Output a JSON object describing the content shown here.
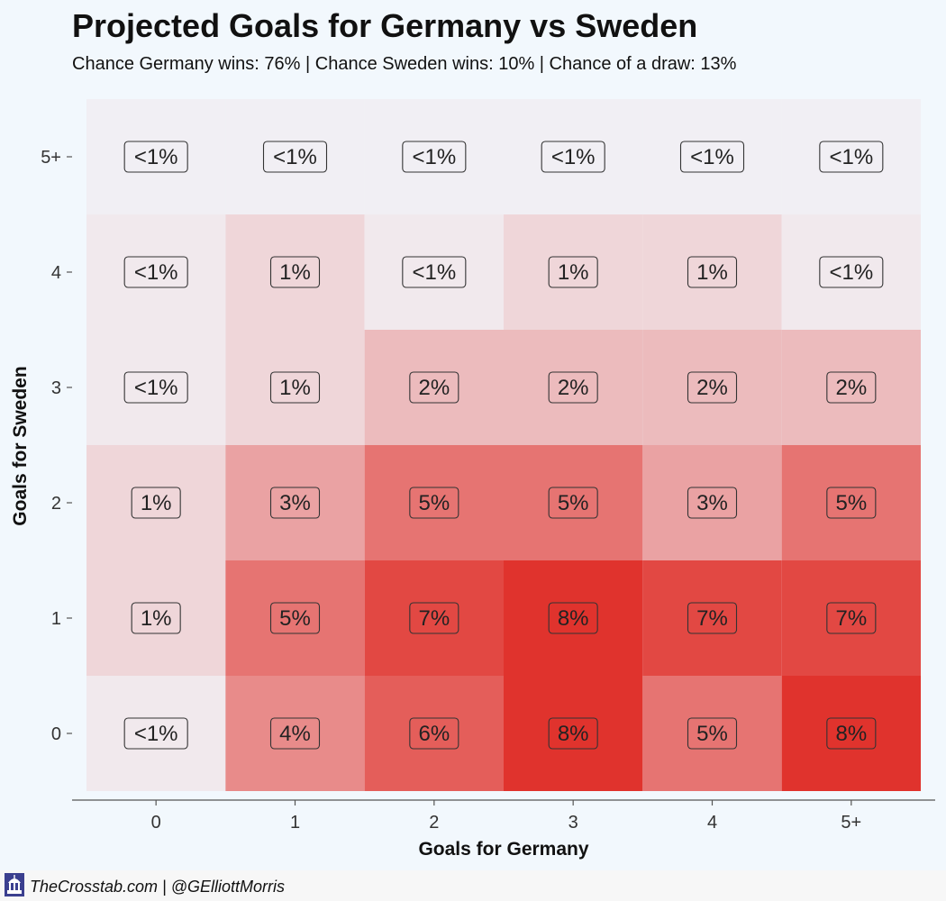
{
  "title": "Projected Goals for Germany vs Sweden",
  "subtitle": "Chance Germany wins: 76% | Chance Sweden wins: 10% | Chance of a draw: 13%",
  "footer": {
    "credit": "TheCrosstab.com | @GElliottMorris",
    "logo_icon": "capitol-building-icon"
  },
  "chart_data": {
    "type": "heatmap",
    "title": "Projected Goals for Germany vs Sweden",
    "subtitle": "Chance Germany wins: 76% | Chance Sweden wins: 10% | Chance of a draw: 13%",
    "xlabel": "Goals for Germany",
    "ylabel": "Goals for Sweden",
    "x_categories": [
      "0",
      "1",
      "2",
      "3",
      "4",
      "5+"
    ],
    "y_categories": [
      "0",
      "1",
      "2",
      "3",
      "4",
      "5+"
    ],
    "color_low": "#f2f8fd",
    "color_high": "#e0332d",
    "cells": [
      {
        "x": "0",
        "y": "0",
        "value": 0.4,
        "label": "<1%"
      },
      {
        "x": "1",
        "y": "0",
        "value": 4,
        "label": "4%"
      },
      {
        "x": "2",
        "y": "0",
        "value": 6,
        "label": "6%"
      },
      {
        "x": "3",
        "y": "0",
        "value": 8,
        "label": "8%"
      },
      {
        "x": "4",
        "y": "0",
        "value": 5,
        "label": "5%"
      },
      {
        "x": "5+",
        "y": "0",
        "value": 8,
        "label": "8%"
      },
      {
        "x": "0",
        "y": "1",
        "value": 1,
        "label": "1%"
      },
      {
        "x": "1",
        "y": "1",
        "value": 5,
        "label": "5%"
      },
      {
        "x": "2",
        "y": "1",
        "value": 7,
        "label": "7%"
      },
      {
        "x": "3",
        "y": "1",
        "value": 8,
        "label": "8%"
      },
      {
        "x": "4",
        "y": "1",
        "value": 7,
        "label": "7%"
      },
      {
        "x": "5+",
        "y": "1",
        "value": 7,
        "label": "7%"
      },
      {
        "x": "0",
        "y": "2",
        "value": 1,
        "label": "1%"
      },
      {
        "x": "1",
        "y": "2",
        "value": 3,
        "label": "3%"
      },
      {
        "x": "2",
        "y": "2",
        "value": 5,
        "label": "5%"
      },
      {
        "x": "3",
        "y": "2",
        "value": 5,
        "label": "5%"
      },
      {
        "x": "4",
        "y": "2",
        "value": 3,
        "label": "3%"
      },
      {
        "x": "5+",
        "y": "2",
        "value": 5,
        "label": "5%"
      },
      {
        "x": "0",
        "y": "3",
        "value": 0.4,
        "label": "<1%"
      },
      {
        "x": "1",
        "y": "3",
        "value": 1,
        "label": "1%"
      },
      {
        "x": "2",
        "y": "3",
        "value": 2,
        "label": "2%"
      },
      {
        "x": "3",
        "y": "3",
        "value": 2,
        "label": "2%"
      },
      {
        "x": "4",
        "y": "3",
        "value": 2,
        "label": "2%"
      },
      {
        "x": "5+",
        "y": "3",
        "value": 2,
        "label": "2%"
      },
      {
        "x": "0",
        "y": "4",
        "value": 0.4,
        "label": "<1%"
      },
      {
        "x": "1",
        "y": "4",
        "value": 1,
        "label": "1%"
      },
      {
        "x": "2",
        "y": "4",
        "value": 0.4,
        "label": "<1%"
      },
      {
        "x": "3",
        "y": "4",
        "value": 1,
        "label": "1%"
      },
      {
        "x": "4",
        "y": "4",
        "value": 1,
        "label": "1%"
      },
      {
        "x": "5+",
        "y": "4",
        "value": 0.4,
        "label": "<1%"
      },
      {
        "x": "0",
        "y": "5+",
        "value": 0.2,
        "label": "<1%"
      },
      {
        "x": "1",
        "y": "5+",
        "value": 0.2,
        "label": "<1%"
      },
      {
        "x": "2",
        "y": "5+",
        "value": 0.2,
        "label": "<1%"
      },
      {
        "x": "3",
        "y": "5+",
        "value": 0.2,
        "label": "<1%"
      },
      {
        "x": "4",
        "y": "5+",
        "value": 0.2,
        "label": "<1%"
      },
      {
        "x": "5+",
        "y": "5+",
        "value": 0.2,
        "label": "<1%"
      }
    ]
  }
}
